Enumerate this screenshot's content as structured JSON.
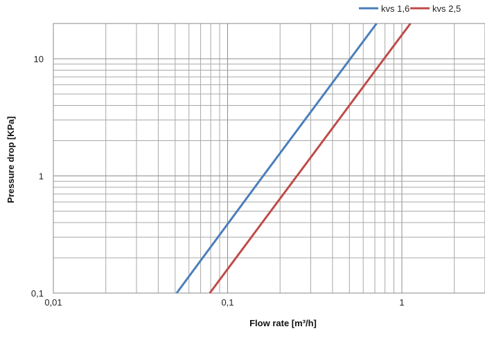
{
  "chart_data": {
    "type": "line",
    "xlabel": "Flow rate [m³/h]",
    "ylabel": "Pressure drop [KPa]",
    "xscale": "log",
    "yscale": "log",
    "xlim": [
      0.01,
      3
    ],
    "ylim": [
      0.1,
      20
    ],
    "x_ticks": [
      {
        "value": 0.01,
        "label": "0,01"
      },
      {
        "value": 0.1,
        "label": "0,1"
      },
      {
        "value": 1,
        "label": "1"
      }
    ],
    "y_ticks": [
      {
        "value": 0.1,
        "label": "0,1"
      },
      {
        "value": 1,
        "label": "1"
      },
      {
        "value": 10,
        "label": "10"
      }
    ],
    "grid": true,
    "legend_position": "top-right",
    "series": [
      {
        "name": "kvs 1,6",
        "color": "#4a7ebb",
        "x": [
          0.051,
          0.16,
          0.506,
          0.716
        ],
        "y": [
          0.1,
          1,
          10,
          20
        ]
      },
      {
        "name": "kvs 2,5",
        "color": "#be4b48",
        "x": [
          0.079,
          0.25,
          0.79,
          1.12
        ],
        "y": [
          0.1,
          1,
          10,
          20
        ]
      }
    ]
  }
}
